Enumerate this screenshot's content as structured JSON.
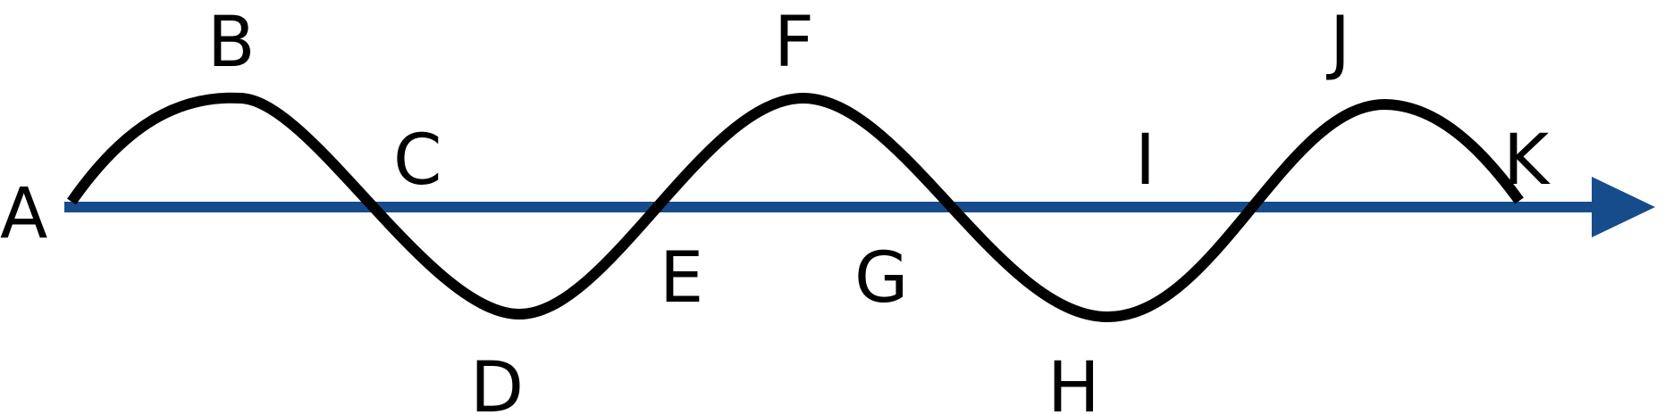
{
  "diagram": {
    "points": {
      "A": "A",
      "B": "B",
      "C": "C",
      "D": "D",
      "E": "E",
      "F": "F",
      "G": "G",
      "H": "H",
      "I": "I",
      "J": "J",
      "K": "K"
    },
    "colors": {
      "axis": "#174c8c",
      "wave": "#000000",
      "text": "#000000",
      "background": "#ffffff"
    }
  }
}
